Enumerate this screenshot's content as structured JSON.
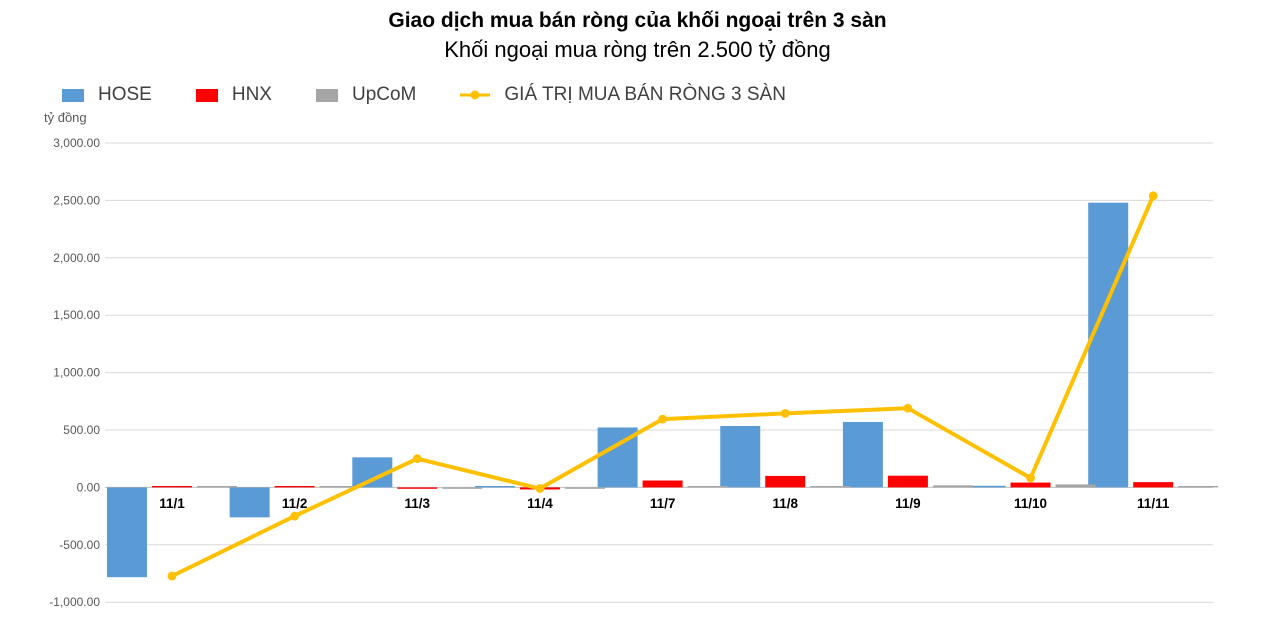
{
  "header": {
    "title": "Giao dịch mua bán ròng của khối ngoại trên 3 sàn",
    "subtitle": "Khối ngoại mua ròng trên 2.500 tỷ đồng"
  },
  "axis_unit_label": "tỷ đồng",
  "chart_data": {
    "type": "combo-bar-line",
    "title": "Giao dịch mua bán ròng của khối ngoại trên 3 sàn",
    "subtitle": "Khối ngoại mua ròng trên 2.500 tỷ đồng",
    "ylabel": "tỷ đồng",
    "grid": true,
    "legend_position": "top-left",
    "categories": [
      "11/1",
      "11/2",
      "11/3",
      "11/4",
      "11/7",
      "11/8",
      "11/9",
      "11/10",
      "11/11"
    ],
    "bar_series": [
      {
        "name": "HOSE",
        "color": "#5B9BD5",
        "values": [
          -782,
          -261,
          262,
          12,
          522,
          535,
          570,
          14,
          2480
        ]
      },
      {
        "name": "HNX",
        "color": "#FF0000",
        "values": [
          9,
          8,
          -10,
          -18,
          60,
          100,
          102,
          42,
          46
        ]
      },
      {
        "name": "UpCoM",
        "color": "#A5A5A5",
        "values": [
          1,
          3,
          -2,
          -4,
          12,
          10,
          18,
          26,
          12
        ]
      }
    ],
    "line_series": {
      "name": "GIÁ TRỊ MUA BÁN RÒNG 3 SÀN",
      "color": "#FFC000",
      "values": [
        -772,
        -250,
        250,
        -10,
        595,
        645,
        690,
        82,
        2540
      ]
    },
    "y_axis": {
      "min": -1000,
      "max": 3000,
      "step": 500,
      "tick_labels": [
        "3,000.00",
        "2,500.00",
        "2,000.00",
        "1,500.00",
        "1,000.00",
        "500.00",
        "0.00",
        "-500.00",
        "-1,000.00"
      ]
    },
    "colors": {
      "gridline": "#D9D9D9",
      "zero_line": "#BFBFBF",
      "tick_text": "#595959",
      "category_text": "#000000"
    }
  }
}
